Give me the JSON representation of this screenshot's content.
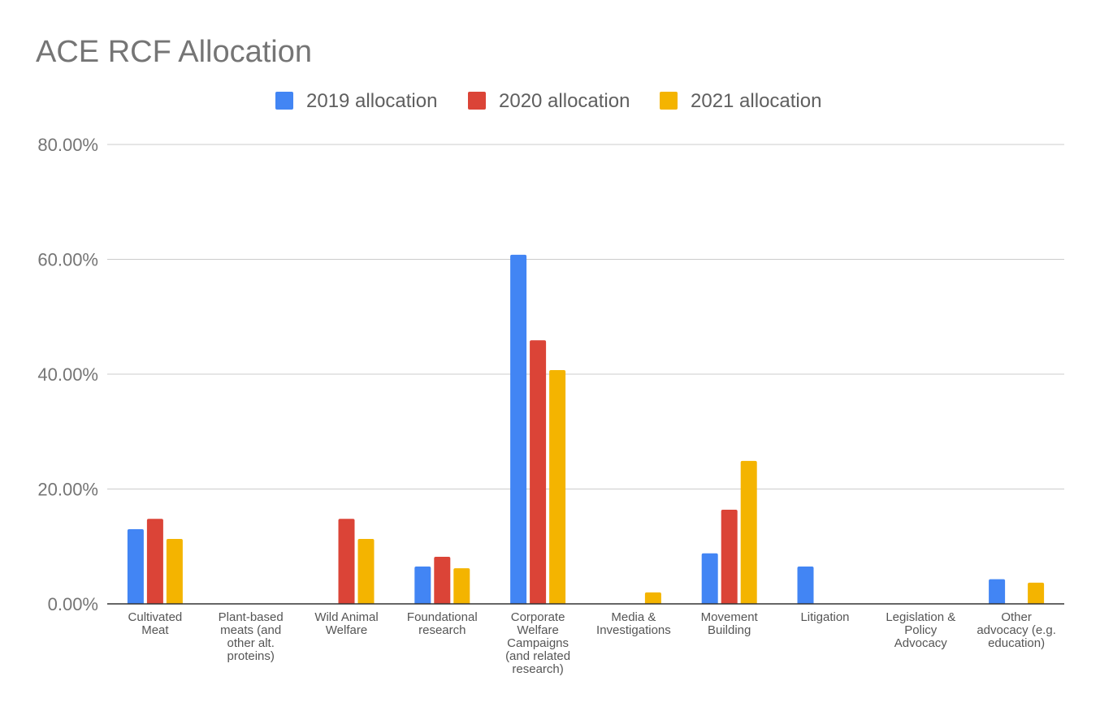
{
  "chart_data": {
    "type": "bar",
    "title": "ACE RCF Allocation",
    "xlabel": "",
    "ylabel": "",
    "ylim": [
      0,
      80
    ],
    "yticks": [
      0,
      20,
      40,
      60,
      80
    ],
    "ytick_labels": [
      "0.00%",
      "20.00%",
      "40.00%",
      "60.00%",
      "80.00%"
    ],
    "grid": true,
    "legend_position": "top-center",
    "categories": [
      [
        "Cultivated",
        "Meat"
      ],
      [
        "Plant-based",
        "meats (and",
        "other alt.",
        "proteins)"
      ],
      [
        "Wild Animal",
        "Welfare"
      ],
      [
        "Foundational",
        "research"
      ],
      [
        "Corporate",
        "Welfare",
        "Campaigns",
        "(and related",
        "research)"
      ],
      [
        "Media &",
        "Investigations"
      ],
      [
        "Movement",
        "Building"
      ],
      [
        "Litigation"
      ],
      [
        "Legislation &",
        "Policy",
        "Advocacy"
      ],
      [
        "Other",
        "advocacy (e.g.",
        "education)"
      ]
    ],
    "series": [
      {
        "name": "2019 allocation",
        "color": "#4285F4",
        "values": [
          13.0,
          0,
          0,
          6.5,
          60.8,
          0,
          8.8,
          6.5,
          0,
          4.3
        ]
      },
      {
        "name": "2020 allocation",
        "color": "#DB4437",
        "values": [
          14.8,
          0,
          14.8,
          8.2,
          45.9,
          0,
          16.4,
          0,
          0,
          0
        ]
      },
      {
        "name": "2021 allocation",
        "color": "#F4B400",
        "values": [
          11.3,
          0,
          11.3,
          6.2,
          40.7,
          2.0,
          24.9,
          0,
          0,
          3.7
        ]
      }
    ]
  }
}
